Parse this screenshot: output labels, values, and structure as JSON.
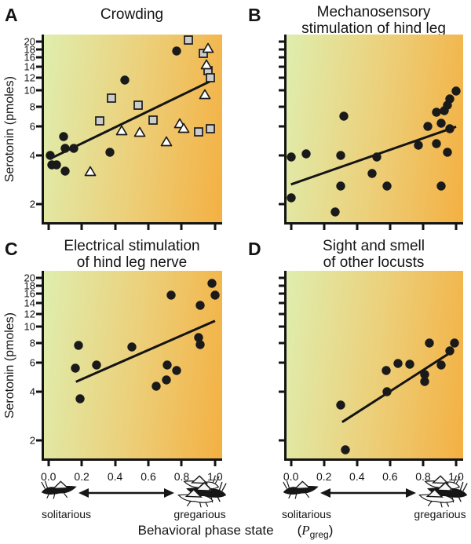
{
  "axes": {
    "ylabel": "Serotonin (pmoles)",
    "yscale": "log",
    "ylim": [
      2,
      20
    ],
    "xlim": [
      0,
      1
    ],
    "y_ticks": [
      2,
      4,
      6,
      8,
      10,
      12,
      14,
      16,
      18,
      20
    ],
    "x_ticks": [
      "0.0",
      "0.2",
      "0.4",
      "0.6",
      "0.8",
      "1.0"
    ],
    "x_tick_values": [
      0.0,
      0.2,
      0.4,
      0.6,
      0.8,
      1.0
    ]
  },
  "chart_data": [
    {
      "panel_label": "A",
      "type": "scatter",
      "title": "Crowding",
      "title_line1": "Crowding",
      "title_line2": "",
      "show_y_tick_labels": true,
      "show_x_tick_labels": false,
      "series": [
        {
          "name": "filled circles",
          "marker": "circle",
          "points": [
            [
              0.01,
              4.0
            ],
            [
              0.02,
              3.5
            ],
            [
              0.05,
              3.5
            ],
            [
              0.09,
              5.2
            ],
            [
              0.1,
              4.4
            ],
            [
              0.15,
              4.4
            ],
            [
              0.1,
              3.2
            ],
            [
              0.37,
              4.2
            ],
            [
              0.46,
              11.6
            ],
            [
              0.77,
              17.5
            ]
          ]
        },
        {
          "name": "gray squares",
          "marker": "square",
          "points": [
            [
              0.31,
              6.5
            ],
            [
              0.38,
              9.0
            ],
            [
              0.54,
              8.1
            ],
            [
              0.63,
              6.6
            ],
            [
              0.84,
              20.4
            ],
            [
              0.9,
              5.6
            ],
            [
              0.93,
              17.0
            ],
            [
              0.96,
              13.2
            ],
            [
              0.97,
              12.0
            ],
            [
              0.97,
              5.8
            ]
          ]
        },
        {
          "name": "open triangles",
          "marker": "triangle",
          "points": [
            [
              0.25,
              3.2
            ],
            [
              0.44,
              5.7
            ],
            [
              0.55,
              5.6
            ],
            [
              0.71,
              4.9
            ],
            [
              0.79,
              6.3
            ],
            [
              0.81,
              5.9
            ],
            [
              0.94,
              9.5
            ],
            [
              0.95,
              14.5
            ],
            [
              0.96,
              18.3
            ]
          ]
        }
      ],
      "trend_line": {
        "x1": 0.03,
        "y1": 3.9,
        "x2": 0.97,
        "y2": 11.4
      }
    },
    {
      "panel_label": "B",
      "type": "scatter",
      "title": "Mechanosensory stimulation of hind leg",
      "title_line1": "Mechanosensory",
      "title_line2": "stimulation of hind leg",
      "show_y_tick_labels": false,
      "show_x_tick_labels": false,
      "series": [
        {
          "name": "filled circles",
          "marker": "circle",
          "points": [
            [
              0.0,
              3.9
            ],
            [
              0.09,
              4.1
            ],
            [
              0.0,
              2.2
            ],
            [
              0.27,
              1.8
            ],
            [
              0.3,
              2.6
            ],
            [
              0.3,
              4.0
            ],
            [
              0.32,
              7.0
            ],
            [
              0.49,
              3.1
            ],
            [
              0.52,
              3.9
            ],
            [
              0.58,
              2.6
            ],
            [
              0.77,
              4.6
            ],
            [
              0.83,
              6.0
            ],
            [
              0.88,
              4.7
            ],
            [
              0.88,
              7.4
            ],
            [
              0.91,
              2.6
            ],
            [
              0.91,
              6.3
            ],
            [
              0.93,
              7.5
            ],
            [
              0.95,
              4.2
            ],
            [
              0.95,
              8.1
            ],
            [
              0.96,
              5.8
            ],
            [
              0.96,
              8.9
            ],
            [
              1.0,
              9.9
            ]
          ]
        }
      ],
      "trend_line": {
        "x1": 0.0,
        "y1": 2.65,
        "x2": 1.0,
        "y2": 6.0
      }
    },
    {
      "panel_label": "C",
      "type": "scatter",
      "title": "Electrical stimulation of hind leg nerve",
      "title_line1": "Electrical stimulation",
      "title_line2": "of hind leg nerve",
      "show_y_tick_labels": true,
      "show_x_tick_labels": true,
      "series": [
        {
          "name": "filled circles",
          "marker": "circle",
          "points": [
            [
              0.16,
              5.6
            ],
            [
              0.18,
              7.7
            ],
            [
              0.19,
              3.6
            ],
            [
              0.29,
              5.8
            ],
            [
              0.5,
              7.5
            ],
            [
              0.645,
              4.3
            ],
            [
              0.71,
              4.7
            ],
            [
              0.715,
              5.85
            ],
            [
              0.735,
              15.6
            ],
            [
              0.77,
              5.4
            ],
            [
              0.9,
              8.6
            ],
            [
              0.91,
              7.8
            ],
            [
              0.91,
              13.6
            ],
            [
              0.98,
              18.5
            ],
            [
              1.0,
              15.6
            ]
          ]
        }
      ],
      "trend_line": {
        "x1": 0.165,
        "y1": 4.6,
        "x2": 1.0,
        "y2": 10.9
      }
    },
    {
      "panel_label": "D",
      "type": "scatter",
      "title": "Sight and smell of other locusts",
      "title_line1": "Sight and smell",
      "title_line2": "of other locusts",
      "show_y_tick_labels": false,
      "show_x_tick_labels": true,
      "series": [
        {
          "name": "filled circles",
          "marker": "circle",
          "points": [
            [
              0.3,
              3.3
            ],
            [
              0.33,
              1.75
            ],
            [
              0.575,
              5.4
            ],
            [
              0.58,
              4.0
            ],
            [
              0.65,
              5.95
            ],
            [
              0.72,
              5.9
            ],
            [
              0.81,
              5.1
            ],
            [
              0.81,
              4.6
            ],
            [
              0.84,
              8.0
            ],
            [
              0.91,
              5.85
            ],
            [
              0.96,
              7.1
            ],
            [
              0.99,
              8.0
            ]
          ]
        }
      ],
      "trend_line": {
        "x1": 0.31,
        "y1": 2.6,
        "x2": 0.97,
        "y2": 7.0
      }
    }
  ],
  "footer": {
    "phase_groups": [
      {
        "solitarious_label": "solitarious",
        "gregarious_label": "gregarious"
      },
      {
        "solitarious_label": "solitarious",
        "gregarious_label": "gregarious"
      }
    ],
    "axis_label_text": "Behavioral phase state",
    "axis_label_symbol_open": "(",
    "axis_label_symbol": "P",
    "axis_label_symbol_sub": "greg",
    "axis_label_symbol_close": ")"
  },
  "colors": {
    "plot_gradient_left": "#dfeeae",
    "plot_gradient_mid": "#eccf79",
    "plot_gradient_right": "#f4b042",
    "axis": "#141414",
    "trend_line": "#141414",
    "marker_circle_fill": "#1a1a1a",
    "marker_square_fill": "#cccccc",
    "marker_triangle_fill": "#ffffff",
    "marker_stroke": "#1a1a1a",
    "background": "#ffffff"
  }
}
